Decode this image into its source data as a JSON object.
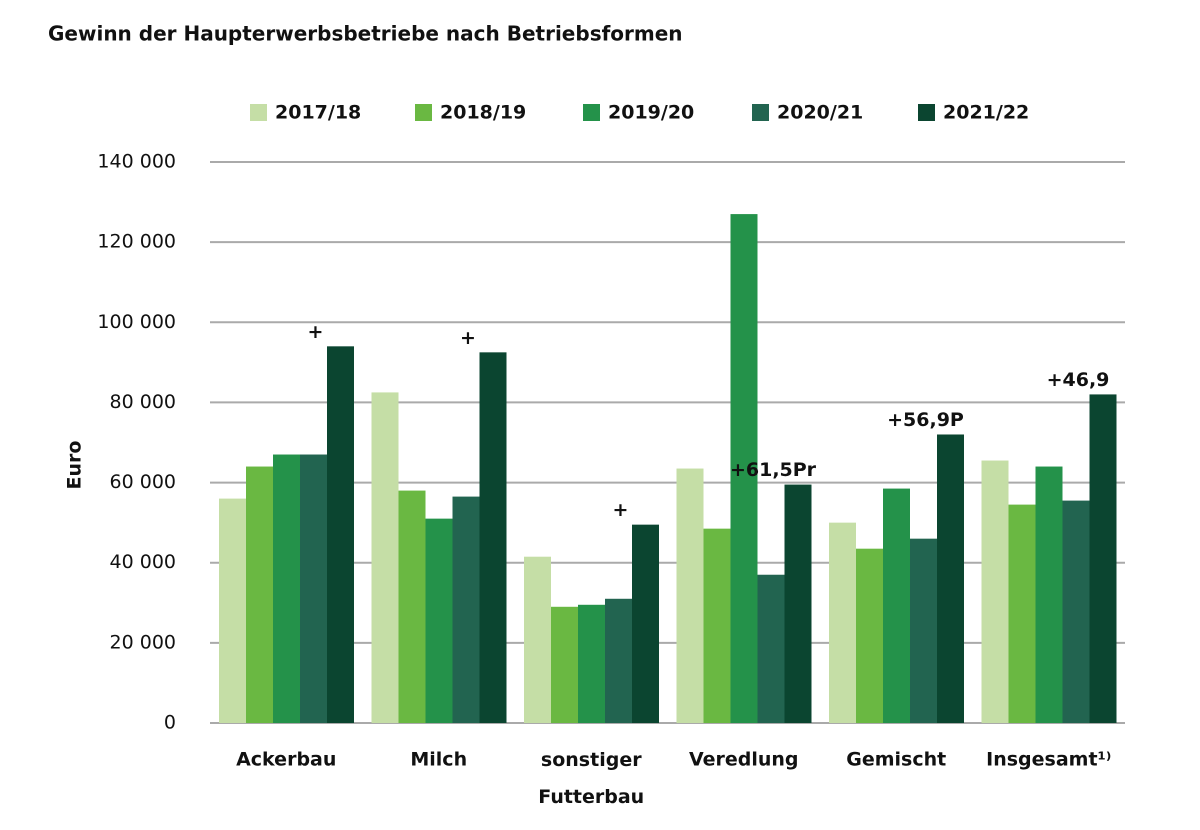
{
  "chart_data": {
    "type": "bar",
    "title": "Gewinn der Haupterwerbsbetriebe nach Betriebsformen",
    "y_label": "Euro",
    "categories": [
      "Ackerbau",
      "Milch",
      "sonstiger Futterbau",
      "Veredlung",
      "Gemischt",
      "Insgesamt¹⁾"
    ],
    "series": [
      {
        "name": "2017/18",
        "color": "#c5dea6",
        "values": [
          56000,
          82500,
          41500,
          63500,
          50000,
          65500
        ]
      },
      {
        "name": "2018/19",
        "color": "#6ab842",
        "values": [
          64000,
          58000,
          29000,
          48500,
          43500,
          54500
        ]
      },
      {
        "name": "2019/20",
        "color": "#24924a",
        "values": [
          67000,
          51000,
          29500,
          127000,
          58500,
          64000
        ]
      },
      {
        "name": "2020/21",
        "color": "#226450",
        "values": [
          67000,
          56500,
          31000,
          37000,
          46000,
          55500
        ]
      },
      {
        "name": "2021/22",
        "color": "#0b4530",
        "values": [
          94000,
          92500,
          49500,
          59500,
          72000,
          82000
        ],
        "annotations": [
          "+",
          "+",
          "+",
          "+61,5Pr",
          "+56,9P",
          "+46,9"
        ]
      }
    ],
    "ylim": [
      0,
      140000
    ],
    "yticks": [
      0,
      {
        "value": 20000,
        "label": "20 000"
      },
      {
        "value": 40000,
        "label": "40 000"
      },
      {
        "value": 60000,
        "label": "60 000"
      },
      {
        "value": 80000,
        "label": "80 000"
      },
      {
        "value": 100000,
        "label": "100 000"
      },
      {
        "value": 120000,
        "label": "120 000"
      },
      {
        "value": 140000,
        "label": "140 000"
      }
    ],
    "grid": true,
    "legend": "top"
  }
}
